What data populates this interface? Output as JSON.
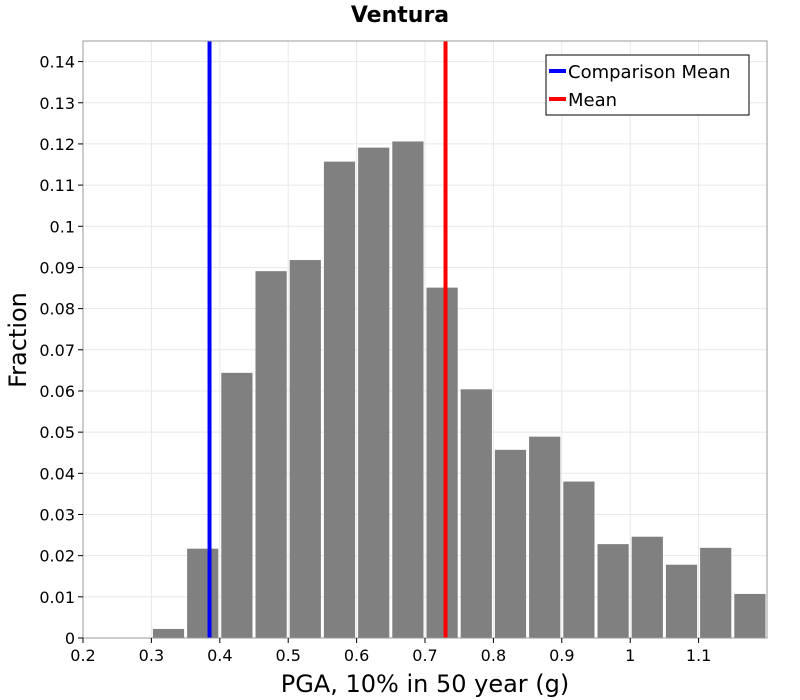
{
  "chart_data": {
    "type": "bar",
    "title": "Ventura",
    "xlabel": "PGA, 10% in 50 year (g)",
    "ylabel": "Fraction",
    "xlim": [
      0.2,
      1.2
    ],
    "ylim": [
      0,
      0.145
    ],
    "x_ticks": [
      0.2,
      0.3,
      0.4,
      0.5,
      0.6,
      0.7,
      0.8,
      0.9,
      1,
      1.1
    ],
    "x_tick_labels": [
      "0.2",
      "0.3",
      "0.4",
      "0.5",
      "0.6",
      "0.7",
      "0.8",
      "0.9",
      "1",
      "1.1"
    ],
    "y_ticks": [
      0,
      0.01,
      0.02,
      0.03,
      0.04,
      0.05,
      0.06,
      0.07,
      0.08,
      0.09,
      0.1,
      0.11,
      0.12,
      0.13,
      0.14
    ],
    "y_tick_labels": [
      "0",
      "0.01",
      "0.02",
      "0.03",
      "0.04",
      "0.05",
      "0.06",
      "0.07",
      "0.08",
      "0.09",
      "0.1",
      "0.11",
      "0.12",
      "0.13",
      "0.14"
    ],
    "bin_width": 0.05,
    "bar_color": "#808080",
    "bins": [
      {
        "x": 0.2,
        "value": 0.0
      },
      {
        "x": 0.25,
        "value": 0.0
      },
      {
        "x": 0.3,
        "value": 0.0022
      },
      {
        "x": 0.35,
        "value": 0.0217
      },
      {
        "x": 0.4,
        "value": 0.0644
      },
      {
        "x": 0.45,
        "value": 0.0891
      },
      {
        "x": 0.5,
        "value": 0.0918
      },
      {
        "x": 0.55,
        "value": 0.1157
      },
      {
        "x": 0.6,
        "value": 0.1191
      },
      {
        "x": 0.65,
        "value": 0.1206
      },
      {
        "x": 0.7,
        "value": 0.0851
      },
      {
        "x": 0.75,
        "value": 0.0604
      },
      {
        "x": 0.8,
        "value": 0.0457
      },
      {
        "x": 0.85,
        "value": 0.0489
      },
      {
        "x": 0.9,
        "value": 0.038
      },
      {
        "x": 0.95,
        "value": 0.0228
      },
      {
        "x": 1.0,
        "value": 0.0246
      },
      {
        "x": 1.05,
        "value": 0.0178
      },
      {
        "x": 1.1,
        "value": 0.0219
      },
      {
        "x": 1.15,
        "value": 0.0107
      }
    ],
    "vertical_lines": [
      {
        "name": "Comparison Mean",
        "x": 0.385,
        "color": "#0000ff"
      },
      {
        "name": "Mean",
        "x": 0.73,
        "color": "#ff0000"
      }
    ],
    "legend": {
      "position": "top-right",
      "entries": [
        "Comparison Mean",
        "Mean"
      ]
    },
    "grid": true
  }
}
